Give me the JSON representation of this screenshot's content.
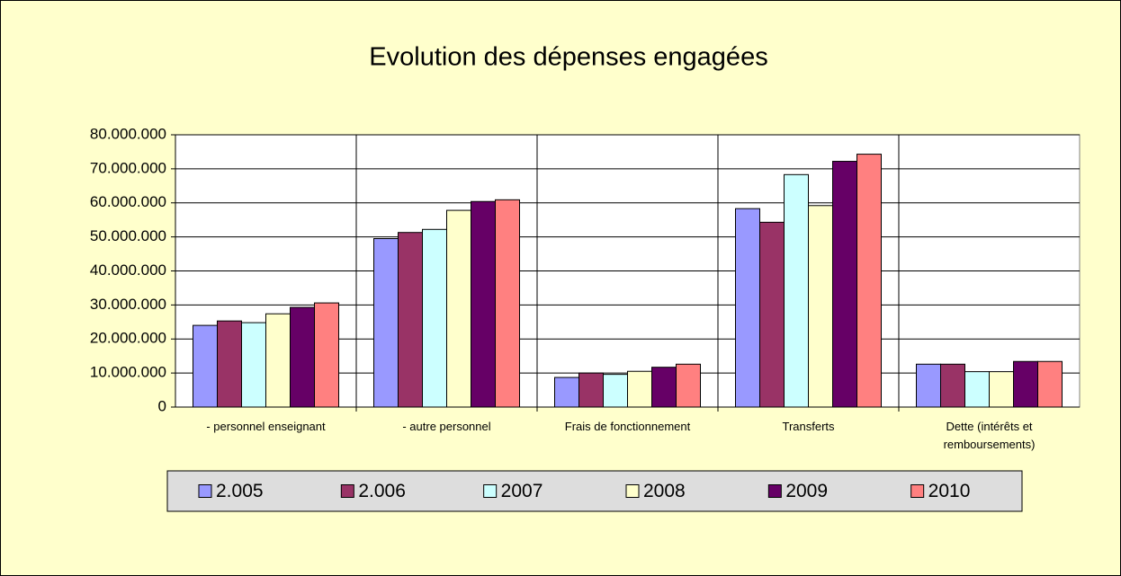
{
  "chart_data": {
    "type": "bar",
    "title": "Evolution des dépenses engagées",
    "categories": [
      "- personnel enseignant",
      "- autre personnel",
      "Frais de fonctionnement",
      "Transferts",
      "Dette (intérêts et remboursements)"
    ],
    "series": [
      {
        "name": "2.005",
        "color": "#9999FF",
        "values": [
          24000000,
          49500000,
          8700000,
          58300000,
          12600000
        ]
      },
      {
        "name": "2.006",
        "color": "#993366",
        "values": [
          25300000,
          51300000,
          10000000,
          54300000,
          12600000
        ]
      },
      {
        "name": "2007",
        "color": "#CCFFFF",
        "values": [
          24800000,
          52200000,
          9600000,
          68300000,
          10400000
        ]
      },
      {
        "name": "2008",
        "color": "#FFFFCC",
        "values": [
          27400000,
          57800000,
          10500000,
          59200000,
          10400000
        ]
      },
      {
        "name": "2009",
        "color": "#660066",
        "values": [
          29300000,
          60400000,
          11700000,
          72200000,
          13400000
        ]
      },
      {
        "name": "2010",
        "color": "#FF8080",
        "values": [
          30600000,
          60900000,
          12600000,
          74300000,
          13400000
        ]
      }
    ],
    "ylim": [
      0,
      80000000
    ],
    "yticks": [
      0,
      {
        "value": 10000000,
        "label": "10.000.000"
      },
      {
        "value": 20000000,
        "label": "20.000.000"
      },
      {
        "value": 30000000,
        "label": "30.000.000"
      },
      {
        "value": 40000000,
        "label": "40.000.000"
      },
      {
        "value": 50000000,
        "label": "50.000.000"
      },
      {
        "value": 60000000,
        "label": "60.000.000"
      },
      {
        "value": 70000000,
        "label": "70.000.000"
      },
      {
        "value": 80000000,
        "label": "80.000.000"
      }
    ],
    "grid": true,
    "legend": "bottom"
  }
}
